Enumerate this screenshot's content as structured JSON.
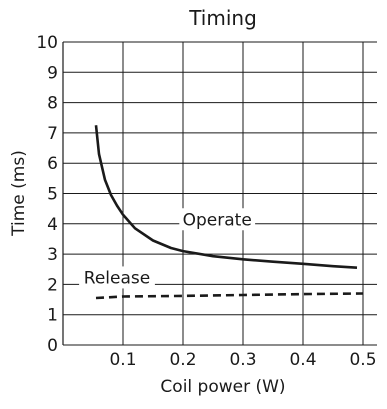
{
  "chart_data": {
    "type": "line",
    "title": "Timing",
    "xlabel": "Coil power (W)",
    "ylabel": "Time (ms)",
    "xlim": [
      0,
      0.5
    ],
    "ylim": [
      0,
      10
    ],
    "x_ticks": [
      "0.1",
      "0.2",
      "0.3",
      "0.4",
      "0.5"
    ],
    "y_ticks": [
      "0",
      "1",
      "2",
      "3",
      "4",
      "5",
      "6",
      "7",
      "8",
      "9",
      "10"
    ],
    "grid": true,
    "series": [
      {
        "name": "Operate",
        "style": "solid",
        "x": [
          0.055,
          0.06,
          0.07,
          0.08,
          0.09,
          0.1,
          0.12,
          0.15,
          0.18,
          0.2,
          0.25,
          0.3,
          0.35,
          0.4,
          0.45,
          0.49
        ],
        "y": [
          7.25,
          6.3,
          5.45,
          4.95,
          4.6,
          4.3,
          3.85,
          3.45,
          3.2,
          3.1,
          2.93,
          2.83,
          2.75,
          2.68,
          2.6,
          2.55
        ]
      },
      {
        "name": "Release",
        "style": "dashed",
        "x": [
          0.055,
          0.1,
          0.2,
          0.3,
          0.4,
          0.5
        ],
        "y": [
          1.55,
          1.6,
          1.62,
          1.65,
          1.68,
          1.7
        ]
      }
    ]
  }
}
